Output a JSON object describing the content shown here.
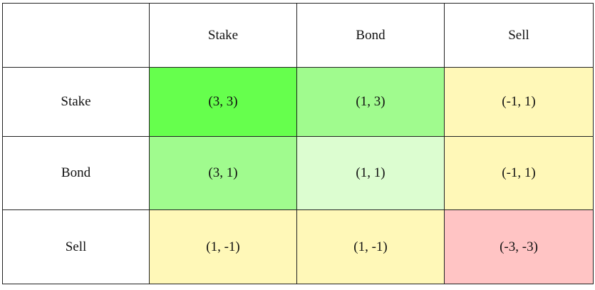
{
  "table": {
    "header": [
      "Stake",
      "Bond",
      "Sell"
    ],
    "rows": [
      [
        "Stake",
        "(3, 3)",
        "(1, 3)",
        "(-1, 1)"
      ],
      [
        "Bond",
        "(3, 1)",
        "(1, 1)",
        "(-1, 1)"
      ],
      [
        "Sell",
        "(1, -1)",
        "(1, -1)",
        "(-3, -3)"
      ]
    ]
  }
}
